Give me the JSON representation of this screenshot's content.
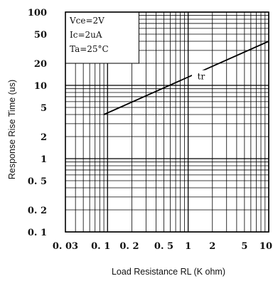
{
  "chart_data": {
    "type": "line",
    "title": "",
    "xlabel": "Load Resistance RL (K ohm)",
    "ylabel": "Response Rise Time (us)",
    "xscale": "log",
    "yscale": "log",
    "xlim": [
      0.03,
      10
    ],
    "ylim": [
      0.1,
      100
    ],
    "grid": true,
    "x_ticks": [
      {
        "value": 0.03,
        "label": "0. 03"
      },
      {
        "value": 0.1,
        "label": "0. 1"
      },
      {
        "value": 0.2,
        "label": "0. 2"
      },
      {
        "value": 0.5,
        "label": "0. 5"
      },
      {
        "value": 1,
        "label": "1"
      },
      {
        "value": 2,
        "label": "2"
      },
      {
        "value": 5,
        "label": "5"
      },
      {
        "value": 10,
        "label": "10"
      }
    ],
    "y_ticks": [
      {
        "value": 100,
        "label": "100"
      },
      {
        "value": 50,
        "label": "50"
      },
      {
        "value": 20,
        "label": "20"
      },
      {
        "value": 10,
        "label": "10"
      },
      {
        "value": 5,
        "label": "5"
      },
      {
        "value": 2,
        "label": "2"
      },
      {
        "value": 1,
        "label": "1"
      },
      {
        "value": 0.5,
        "label": "0. 5"
      },
      {
        "value": 0.2,
        "label": "0. 2"
      },
      {
        "value": 0.1,
        "label": "0. 1"
      }
    ],
    "conditions": [
      "Vce=2V",
      "Ic=2uA",
      "Ta=25°C"
    ],
    "series": [
      {
        "name": "tr",
        "x": [
          0.09,
          10
        ],
        "y": [
          4,
          40
        ]
      }
    ]
  }
}
